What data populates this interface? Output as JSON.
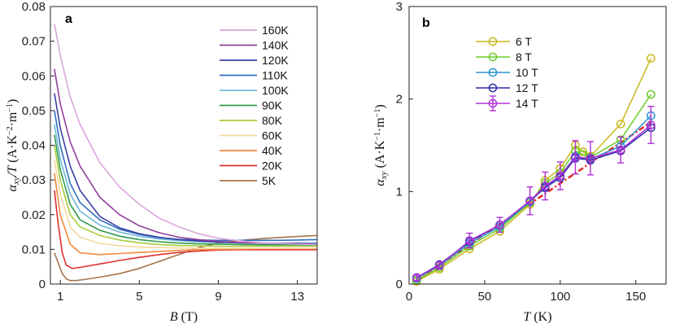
{
  "chart_data": [
    {
      "panel": "a",
      "type": "line",
      "title": "",
      "xlabel_var": "B",
      "xlabel_unit": "(T)",
      "ylabel_var": "α",
      "ylabel_sub": "xy",
      "ylabel_rest": "/T",
      "ylabel_unit": "(A·K",
      "ylabel_unit_sup1": "−2",
      "ylabel_unit_mid": "·m",
      "ylabel_unit_sup2": "−1",
      "ylabel_unit_end": ")",
      "xlim": [
        0.5,
        14
      ],
      "ylim": [
        0,
        0.08
      ],
      "xticks": [
        1,
        5,
        9,
        13
      ],
      "yticks": [
        0,
        0.01,
        0.02,
        0.03,
        0.04,
        0.05,
        0.06,
        0.07,
        0.08
      ],
      "ytick_labels": [
        "0",
        "0.01",
        "0.02",
        "0.03",
        "0.04",
        "0.05",
        "0.06",
        "0.07",
        "0.08"
      ],
      "legend_position": "top-right",
      "series": [
        {
          "name": "160K",
          "color": "#d9a6dc",
          "x": [
            0.7,
            1,
            1.5,
            2,
            3,
            4,
            5,
            6,
            7,
            8,
            9,
            10,
            11,
            12,
            13,
            14
          ],
          "y": [
            0.075,
            0.066,
            0.054,
            0.046,
            0.035,
            0.028,
            0.023,
            0.019,
            0.0165,
            0.0145,
            0.0132,
            0.0125,
            0.012,
            0.0117,
            0.0115,
            0.0114
          ]
        },
        {
          "name": "140K",
          "color": "#8f3f9a",
          "x": [
            0.7,
            1,
            1.5,
            2,
            3,
            4,
            5,
            6,
            7,
            8,
            9,
            10,
            11,
            12,
            13,
            14
          ],
          "y": [
            0.062,
            0.052,
            0.041,
            0.034,
            0.025,
            0.02,
            0.0168,
            0.0148,
            0.0135,
            0.0128,
            0.0123,
            0.012,
            0.0118,
            0.0117,
            0.0116,
            0.0115
          ]
        },
        {
          "name": "120K",
          "color": "#3a3fa5",
          "x": [
            0.7,
            1,
            1.5,
            2,
            3,
            4,
            5,
            6,
            7,
            8,
            9,
            10,
            11,
            12,
            13,
            14
          ],
          "y": [
            0.055,
            0.045,
            0.034,
            0.027,
            0.0195,
            0.0162,
            0.0145,
            0.0135,
            0.0128,
            0.0124,
            0.0121,
            0.0119,
            0.0118,
            0.0117,
            0.0117,
            0.0116
          ]
        },
        {
          "name": "110K",
          "color": "#2f6fc0",
          "x": [
            0.7,
            1,
            1.5,
            2,
            3,
            4,
            5,
            6,
            7,
            8,
            9,
            10,
            11,
            12,
            13,
            14
          ],
          "y": [
            0.05,
            0.04,
            0.029,
            0.0235,
            0.0185,
            0.0158,
            0.0143,
            0.0134,
            0.0129,
            0.0127,
            0.0126,
            0.0126,
            0.0126,
            0.0126,
            0.0127,
            0.0128
          ]
        },
        {
          "name": "100K",
          "color": "#6fb8d9",
          "x": [
            0.7,
            1,
            1.5,
            2,
            3,
            4,
            5,
            6,
            7,
            8,
            9,
            10,
            11,
            12,
            13,
            14
          ],
          "y": [
            0.046,
            0.036,
            0.026,
            0.021,
            0.017,
            0.015,
            0.0138,
            0.013,
            0.0125,
            0.0122,
            0.012,
            0.0119,
            0.0118,
            0.0118,
            0.0118,
            0.0118
          ]
        },
        {
          "name": "90K",
          "color": "#2e9a4c",
          "x": [
            0.7,
            1,
            1.5,
            2,
            3,
            4,
            5,
            6,
            7,
            8,
            9,
            10,
            11,
            12,
            13,
            14
          ],
          "y": [
            0.043,
            0.033,
            0.023,
            0.0185,
            0.0155,
            0.0138,
            0.0128,
            0.0122,
            0.0118,
            0.0116,
            0.0115,
            0.0114,
            0.0113,
            0.0113,
            0.0113,
            0.0113
          ]
        },
        {
          "name": "80K",
          "color": "#a8cc3a",
          "x": [
            0.7,
            1,
            1.5,
            2,
            3,
            4,
            5,
            6,
            7,
            8,
            9,
            10,
            11,
            12,
            13,
            14
          ],
          "y": [
            0.04,
            0.03,
            0.02,
            0.0165,
            0.014,
            0.0127,
            0.0119,
            0.0114,
            0.0111,
            0.011,
            0.0109,
            0.0109,
            0.0109,
            0.0109,
            0.0109,
            0.0109
          ]
        },
        {
          "name": "60K",
          "color": "#f5d9a0",
          "x": [
            0.7,
            1,
            1.5,
            2,
            3,
            4,
            5,
            6,
            7,
            8,
            9,
            10,
            11,
            12,
            13,
            14
          ],
          "y": [
            0.036,
            0.026,
            0.0165,
            0.0135,
            0.0117,
            0.011,
            0.0107,
            0.0105,
            0.0104,
            0.0103,
            0.0103,
            0.0103,
            0.0103,
            0.0103,
            0.0103,
            0.0103
          ]
        },
        {
          "name": "40K",
          "color": "#f08a3c",
          "x": [
            0.7,
            1,
            1.5,
            2,
            3,
            4,
            5,
            6,
            7,
            8,
            9,
            10,
            11,
            12,
            13,
            14
          ],
          "y": [
            0.032,
            0.02,
            0.0115,
            0.009,
            0.0085,
            0.0088,
            0.0091,
            0.0094,
            0.0097,
            0.0099,
            0.01,
            0.0101,
            0.0102,
            0.0102,
            0.0102,
            0.0102
          ]
        },
        {
          "name": "20K",
          "color": "#e03030",
          "x": [
            0.7,
            0.9,
            1.1,
            1.3,
            1.6,
            2,
            3,
            4,
            5,
            6,
            7,
            8,
            9,
            10,
            11,
            12,
            13,
            14
          ],
          "y": [
            0.027,
            0.017,
            0.009,
            0.0055,
            0.0045,
            0.0048,
            0.0058,
            0.0068,
            0.0077,
            0.0085,
            0.0091,
            0.0095,
            0.0098,
            0.0099,
            0.0099,
            0.0099,
            0.0099,
            0.0099
          ]
        },
        {
          "name": "5K",
          "color": "#a5744c",
          "x": [
            0.7,
            0.9,
            1.1,
            1.3,
            1.5,
            1.8,
            2.2,
            3,
            4,
            5,
            6,
            7,
            8,
            9,
            10,
            11,
            12,
            13,
            14
          ],
          "y": [
            0.009,
            0.006,
            0.003,
            0.0015,
            0.001,
            0.001,
            0.0013,
            0.002,
            0.003,
            0.0045,
            0.0065,
            0.0085,
            0.0105,
            0.0118,
            0.0125,
            0.013,
            0.0134,
            0.0137,
            0.014
          ]
        }
      ]
    },
    {
      "panel": "b",
      "type": "line",
      "title": "",
      "xlabel_var": "T",
      "xlabel_unit": "(K)",
      "ylabel_var": "α",
      "ylabel_sub": "xy",
      "ylabel_unit": "(A·K",
      "ylabel_unit_sup1": "−1",
      "ylabel_unit_mid": "·m",
      "ylabel_unit_sup2": "−1",
      "ylabel_unit_end": ")",
      "xlim": [
        0,
        170
      ],
      "ylim": [
        0,
        3
      ],
      "xticks": [
        0,
        50,
        100,
        150
      ],
      "yticks": [
        0,
        1,
        2,
        3
      ],
      "legend_position": "top-left",
      "fit_line": {
        "color": "#e02020",
        "style": "dash-dot",
        "x": [
          5,
          160
        ],
        "y": [
          0.04,
          1.75
        ]
      },
      "series": [
        {
          "name": "6 T",
          "color": "#c8b81a",
          "x": [
            5,
            20,
            40,
            60,
            80,
            90,
            100,
            110,
            115,
            120,
            140,
            160
          ],
          "y": [
            0.03,
            0.16,
            0.38,
            0.57,
            0.86,
            1.12,
            1.25,
            1.5,
            1.43,
            1.38,
            1.73,
            2.44
          ]
        },
        {
          "name": "8 T",
          "color": "#6ccc2a",
          "x": [
            5,
            20,
            40,
            60,
            80,
            90,
            100,
            110,
            115,
            120,
            140,
            160
          ],
          "y": [
            0.04,
            0.18,
            0.41,
            0.6,
            0.88,
            1.09,
            1.2,
            1.44,
            1.4,
            1.37,
            1.56,
            2.05
          ]
        },
        {
          "name": "10 T",
          "color": "#2a92d0",
          "x": [
            5,
            20,
            40,
            60,
            80,
            90,
            100,
            110,
            120,
            140,
            160
          ],
          "y": [
            0.06,
            0.2,
            0.44,
            0.62,
            0.89,
            1.05,
            1.17,
            1.38,
            1.35,
            1.49,
            1.82
          ]
        },
        {
          "name": "12 T",
          "color": "#2a2aa5",
          "x": [
            5,
            20,
            40,
            60,
            80,
            90,
            100,
            110,
            120,
            140,
            160
          ],
          "y": [
            0.07,
            0.21,
            0.46,
            0.64,
            0.9,
            1.04,
            1.15,
            1.36,
            1.34,
            1.44,
            1.69
          ]
        },
        {
          "name": "14 T",
          "color": "#b030d8",
          "errorbars": true,
          "x": [
            5,
            20,
            40,
            60,
            80,
            90,
            100,
            110,
            120,
            140,
            160
          ],
          "y": [
            0.07,
            0.2,
            0.47,
            0.64,
            0.9,
            1.06,
            1.17,
            1.37,
            1.36,
            1.45,
            1.72
          ],
          "yerr": [
            0.03,
            0.04,
            0.08,
            0.08,
            0.15,
            0.15,
            0.15,
            0.18,
            0.18,
            0.14,
            0.2
          ]
        }
      ]
    }
  ]
}
